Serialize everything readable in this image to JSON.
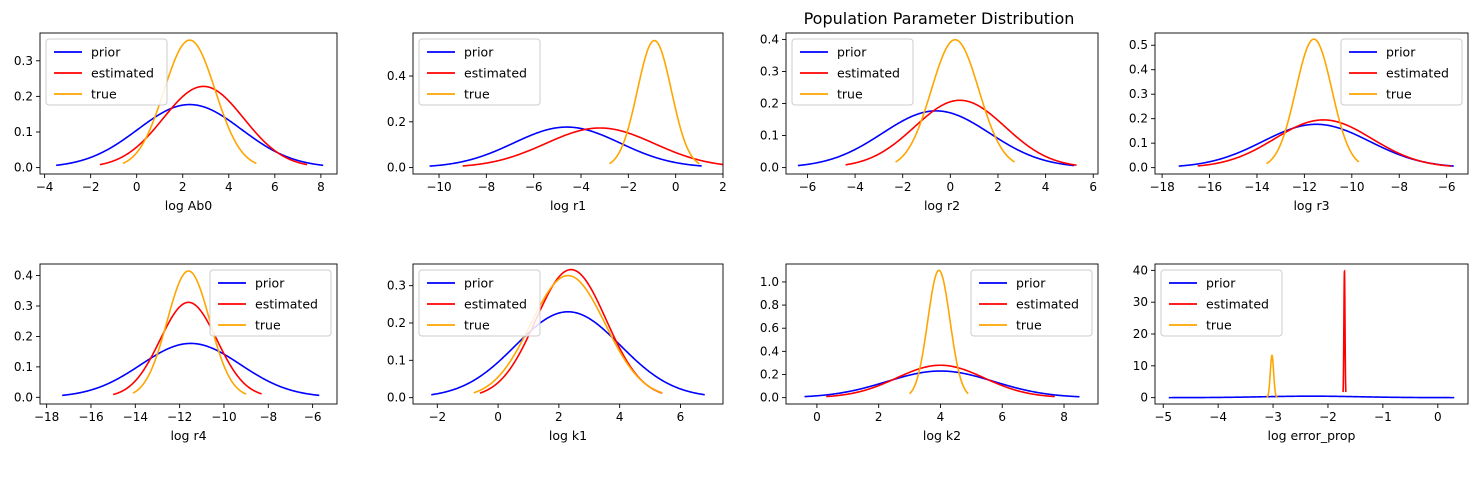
{
  "figure": {
    "title": "Population Parameter Distribution"
  },
  "colors": {
    "prior": "#0000ff",
    "estimated": "#ff0000",
    "true": "#ffa500"
  },
  "chart_data": [
    {
      "type": "line",
      "xlabel": "log Ab0",
      "ylabel": "",
      "xlim": [
        -4.2,
        8.7
      ],
      "ylim": [
        -0.018,
        0.378
      ],
      "xticks": [
        -4,
        -2,
        0,
        2,
        4,
        6,
        8
      ],
      "yticks": [
        0.0,
        0.1,
        0.2,
        0.3
      ],
      "ytick_labels": [
        "0.0",
        "0.1",
        "0.2",
        "0.3"
      ],
      "legend": "upper left",
      "series": [
        {
          "name": "prior",
          "color": "#0000ff",
          "mu": 2.3,
          "sigma": 2.25,
          "peak": 0.177,
          "range": [
            -3.5,
            8.1
          ]
        },
        {
          "name": "estimated",
          "color": "#ff0000",
          "mu": 2.9,
          "sigma": 1.75,
          "peak": 0.228,
          "range": [
            -1.6,
            7.4
          ]
        },
        {
          "name": "true",
          "color": "#ffa500",
          "mu": 2.3,
          "sigma": 1.11,
          "peak": 0.358,
          "range": [
            -0.6,
            5.2
          ]
        }
      ]
    },
    {
      "type": "line",
      "xlabel": "log r1",
      "ylabel": "",
      "xlim": [
        -11.1,
        2.0
      ],
      "ylim": [
        -0.028,
        0.588
      ],
      "xticks": [
        -10,
        -8,
        -6,
        -4,
        -2,
        0,
        2
      ],
      "yticks": [
        0.0,
        0.2,
        0.4
      ],
      "ytick_labels": [
        "0.0",
        "0.2",
        "0.4"
      ],
      "legend": "upper left",
      "series": [
        {
          "name": "prior",
          "color": "#0000ff",
          "mu": -4.6,
          "sigma": 2.25,
          "peak": 0.177,
          "range": [
            -10.4,
            1.1
          ]
        },
        {
          "name": "estimated",
          "color": "#ff0000",
          "mu": -3.2,
          "sigma": 2.3,
          "peak": 0.173,
          "range": [
            -9.0,
            2.0
          ]
        },
        {
          "name": "true",
          "color": "#ffa500",
          "mu": -0.9,
          "sigma": 0.72,
          "peak": 0.555,
          "range": [
            -2.8,
            1.0
          ]
        }
      ]
    },
    {
      "type": "line",
      "xlabel": "log r2",
      "ylabel": "",
      "xlim": [
        -6.9,
        6.2
      ],
      "ylim": [
        -0.02,
        0.42
      ],
      "xticks": [
        -6,
        -4,
        -2,
        0,
        2,
        4,
        6
      ],
      "yticks": [
        0.0,
        0.1,
        0.2,
        0.3,
        0.4
      ],
      "ytick_labels": [
        "0.0",
        "0.1",
        "0.2",
        "0.3",
        "0.4"
      ],
      "legend": "upper left",
      "series": [
        {
          "name": "prior",
          "color": "#0000ff",
          "mu": -0.6,
          "sigma": 2.25,
          "peak": 0.177,
          "range": [
            -6.4,
            5.2
          ]
        },
        {
          "name": "estimated",
          "color": "#ff0000",
          "mu": 0.4,
          "sigma": 1.9,
          "peak": 0.21,
          "range": [
            -4.4,
            5.3
          ]
        },
        {
          "name": "true",
          "color": "#ffa500",
          "mu": 0.2,
          "sigma": 1.0,
          "peak": 0.399,
          "range": [
            -2.3,
            2.7
          ]
        }
      ]
    },
    {
      "type": "line",
      "xlabel": "log r3",
      "ylabel": "",
      "xlim": [
        -18.3,
        -5.1
      ],
      "ylim": [
        -0.026,
        0.55
      ],
      "xticks": [
        -18,
        -16,
        -14,
        -12,
        -10,
        -8,
        -6
      ],
      "yticks": [
        0.0,
        0.1,
        0.2,
        0.3,
        0.4,
        0.5
      ],
      "ytick_labels": [
        "0.0",
        "0.1",
        "0.2",
        "0.3",
        "0.4",
        "0.5"
      ],
      "legend": "upper right",
      "series": [
        {
          "name": "prior",
          "color": "#0000ff",
          "mu": -11.5,
          "sigma": 2.25,
          "peak": 0.177,
          "range": [
            -17.3,
            -5.7
          ]
        },
        {
          "name": "estimated",
          "color": "#ff0000",
          "mu": -11.2,
          "sigma": 2.05,
          "peak": 0.195,
          "range": [
            -16.5,
            -5.8
          ]
        },
        {
          "name": "true",
          "color": "#ffa500",
          "mu": -11.6,
          "sigma": 0.76,
          "peak": 0.525,
          "range": [
            -13.6,
            -9.7
          ]
        }
      ]
    },
    {
      "type": "line",
      "xlabel": "log r4",
      "ylabel": "",
      "xlim": [
        -18.3,
        -4.9
      ],
      "ylim": [
        -0.022,
        0.438
      ],
      "xticks": [
        -18,
        -16,
        -14,
        -12,
        -10,
        -8,
        -6
      ],
      "yticks": [
        0.0,
        0.1,
        0.2,
        0.3,
        0.4
      ],
      "ytick_labels": [
        "0.0",
        "0.1",
        "0.2",
        "0.3",
        "0.4"
      ],
      "legend": "upper right",
      "series": [
        {
          "name": "prior",
          "color": "#0000ff",
          "mu": -11.5,
          "sigma": 2.25,
          "peak": 0.177,
          "range": [
            -17.3,
            -5.7
          ]
        },
        {
          "name": "estimated",
          "color": "#ff0000",
          "mu": -11.6,
          "sigma": 1.28,
          "peak": 0.312,
          "range": [
            -15.0,
            -8.3
          ]
        },
        {
          "name": "true",
          "color": "#ffa500",
          "mu": -11.6,
          "sigma": 0.96,
          "peak": 0.415,
          "range": [
            -14.1,
            -9.0
          ]
        }
      ]
    },
    {
      "type": "line",
      "xlabel": "log k1",
      "ylabel": "",
      "xlim": [
        -2.8,
        7.4
      ],
      "ylim": [
        -0.017,
        0.358
      ],
      "xticks": [
        -2,
        0,
        2,
        4,
        6
      ],
      "yticks": [
        0.0,
        0.1,
        0.2,
        0.3
      ],
      "ytick_labels": [
        "0.0",
        "0.1",
        "0.2",
        "0.3"
      ],
      "legend": "upper left",
      "series": [
        {
          "name": "prior",
          "color": "#0000ff",
          "mu": 2.3,
          "sigma": 1.73,
          "peak": 0.23,
          "range": [
            -2.2,
            6.8
          ]
        },
        {
          "name": "estimated",
          "color": "#ff0000",
          "mu": 2.4,
          "sigma": 1.16,
          "peak": 0.343,
          "range": [
            -0.6,
            5.4
          ]
        },
        {
          "name": "true",
          "color": "#ffa500",
          "mu": 2.3,
          "sigma": 1.22,
          "peak": 0.327,
          "range": [
            -0.8,
            5.4
          ]
        }
      ]
    },
    {
      "type": "line",
      "xlabel": "log k2",
      "ylabel": "",
      "xlim": [
        -1.0,
        9.1
      ],
      "ylim": [
        -0.055,
        1.155
      ],
      "xticks": [
        0,
        2,
        4,
        6,
        8
      ],
      "yticks": [
        0.0,
        0.2,
        0.4,
        0.6,
        0.8,
        1.0
      ],
      "ytick_labels": [
        "0.0",
        "0.2",
        "0.4",
        "0.6",
        "0.8",
        "1.0"
      ],
      "legend": "upper right",
      "series": [
        {
          "name": "prior",
          "color": "#0000ff",
          "mu": 4.0,
          "sigma": 1.73,
          "peak": 0.23,
          "range": [
            -0.4,
            8.5
          ]
        },
        {
          "name": "estimated",
          "color": "#ff0000",
          "mu": 4.0,
          "sigma": 1.42,
          "peak": 0.28,
          "range": [
            0.3,
            7.7
          ]
        },
        {
          "name": "true",
          "color": "#ffa500",
          "mu": 3.95,
          "sigma": 0.36,
          "peak": 1.1,
          "range": [
            3.0,
            4.9
          ]
        }
      ]
    },
    {
      "type": "line",
      "xlabel": "log error_prop",
      "ylabel": "",
      "xlim": [
        -5.15,
        0.55
      ],
      "ylim": [
        -2.0,
        42.0
      ],
      "xticks": [
        -5,
        -4,
        -3,
        -2,
        -1,
        0
      ],
      "yticks": [
        0,
        10,
        20,
        30,
        40
      ],
      "ytick_labels": [
        "0",
        "10",
        "20",
        "30",
        "40"
      ],
      "legend": "upper left",
      "series": [
        {
          "name": "prior",
          "color": "#0000ff",
          "mu": -2.3,
          "sigma": 0.87,
          "peak": 0.46,
          "range": [
            -4.9,
            0.3
          ]
        },
        {
          "name": "estimated",
          "color": "#ff0000",
          "mu": -1.7,
          "sigma": 0.01,
          "peak": 39.7,
          "range": [
            -1.725,
            -1.675
          ]
        },
        {
          "name": "true",
          "color": "#ffa500",
          "mu": -3.02,
          "sigma": 0.03,
          "peak": 13.3,
          "range": [
            -3.12,
            -2.92
          ]
        }
      ]
    }
  ]
}
